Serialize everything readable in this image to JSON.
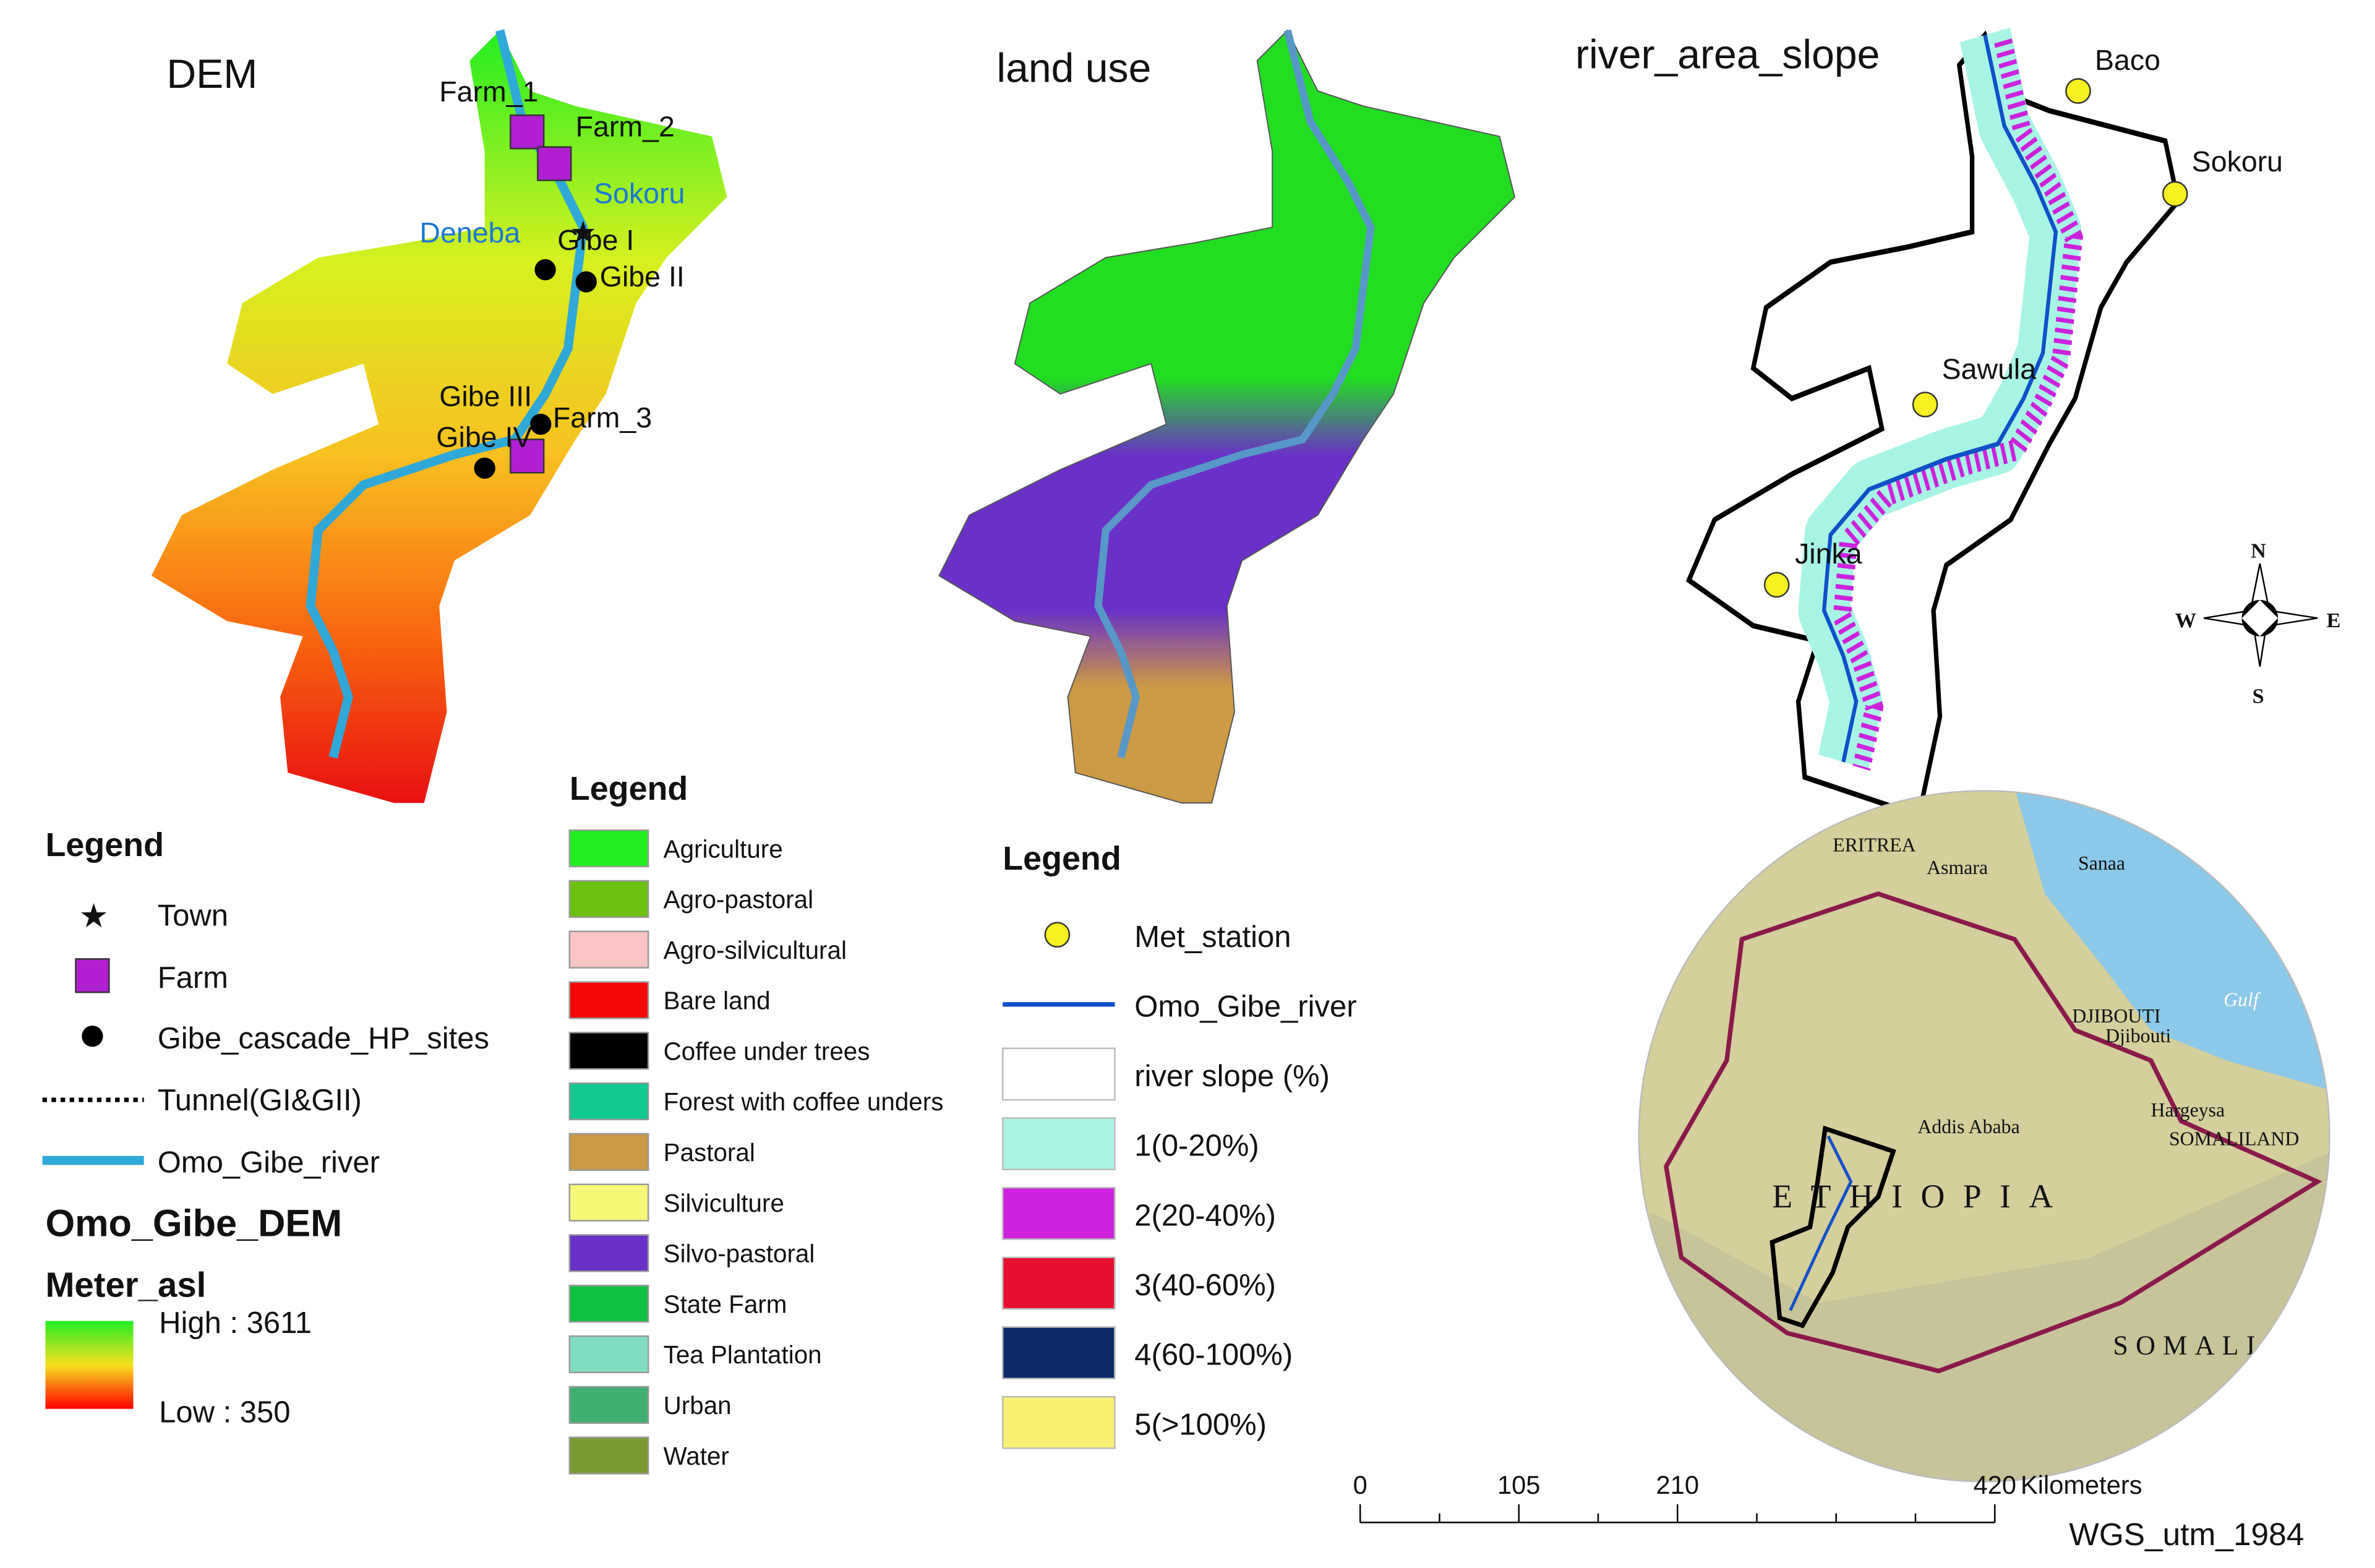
{
  "dem_panel": {
    "title": "DEM",
    "labels": [
      "Farm_1",
      "Farm_2",
      "Sokoru",
      "Deneba",
      "Gibe I",
      "Gibe II",
      "Gibe III",
      "Farm_3",
      "Gibe IV"
    ]
  },
  "land_use_panel": {
    "title": "land use"
  },
  "slope_panel": {
    "title": "river_area_slope",
    "labels": [
      "Baco",
      "Sokoru",
      "Sawula",
      "Jinka"
    ],
    "compass": [
      "N",
      "S",
      "W",
      "E"
    ]
  },
  "dem_legend": {
    "title": "Legend",
    "items": [
      "Town",
      "Farm",
      "Gibe_cascade_HP_sites",
      "Tunnel(GI&GII)",
      "Omo_Gibe_river"
    ],
    "layer": "Omo_Gibe_DEM",
    "unit": "Meter_asl",
    "high": "High : 3611",
    "low": "Low : 350"
  },
  "land_use_legend": {
    "title": "Legend",
    "items": [
      {
        "name": "Agriculture",
        "color": "#22ee22"
      },
      {
        "name": "Agro-pastoral",
        "color": "#6cc010"
      },
      {
        "name": "Agro-silvicultural",
        "color": "#f8c4c4"
      },
      {
        "name": "Bare land",
        "color": "#f80808"
      },
      {
        "name": "Coffee under trees",
        "color": "#000000"
      },
      {
        "name": "Forest with coffee unders",
        "color": "#10c890"
      },
      {
        "name": "Pastoral",
        "color": "#cc9a44"
      },
      {
        "name": "Silviculture",
        "color": "#f8f878"
      },
      {
        "name": "Silvo-pastoral",
        "color": "#6a30c8"
      },
      {
        "name": "State Farm",
        "color": "#10c040"
      },
      {
        "name": "Tea Plantation",
        "color": "#80dcc0"
      },
      {
        "name": "Urban",
        "color": "#40b070"
      },
      {
        "name": "Water",
        "color": "#789a30"
      }
    ]
  },
  "slope_legend": {
    "title": "Legend",
    "items": [
      {
        "name": "Met_station",
        "symbol": "point",
        "color": "#f8f020"
      },
      {
        "name": "Omo_Gibe_river",
        "symbol": "line",
        "color": "#1050c8"
      },
      {
        "name": "river slope (%)",
        "symbol": "patch",
        "color": "#ffffff"
      },
      {
        "name": "1(0-20%)",
        "symbol": "patch",
        "color": "#a8f4e4"
      },
      {
        "name": "2(20-40%)",
        "symbol": "patch",
        "color": "#cc22dc"
      },
      {
        "name": "3(40-60%)",
        "symbol": "patch",
        "color": "#e81030"
      },
      {
        "name": "4(60-100%)",
        "symbol": "patch",
        "color": "#0a2a6a"
      },
      {
        "name": "5(>100%)",
        "symbol": "patch",
        "color": "#f8f070"
      }
    ]
  },
  "inset_map": {
    "labels": [
      "ERITREA",
      "Asmara",
      "Sanaa",
      "Gulf",
      "DJIBOUTI",
      "Djibouti",
      "Hargeysa",
      "Addis Ababa",
      "SOMALILAND",
      "ETHIOPIA",
      "SOMALIA"
    ]
  },
  "scale_bar": {
    "ticks": [
      0,
      105,
      210,
      420
    ],
    "unit": "Kilometers",
    "projection": "WGS_utm_1984"
  }
}
